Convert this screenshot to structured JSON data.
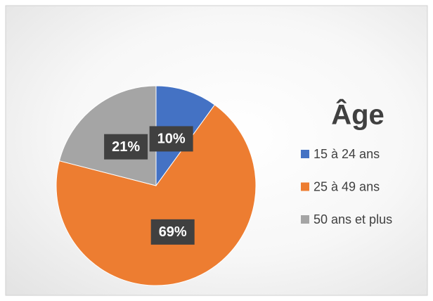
{
  "chart_data": {
    "type": "pie",
    "title": "Âge",
    "categories": [
      "15 à 24 ans",
      "25 à 49 ans",
      "50 ans et plus"
    ],
    "values": [
      10,
      69,
      21
    ],
    "value_labels": [
      "10%",
      "69%",
      "21%"
    ],
    "colors": [
      "#4472c4",
      "#ed7d31",
      "#a5a5a5"
    ],
    "legend": "right"
  }
}
